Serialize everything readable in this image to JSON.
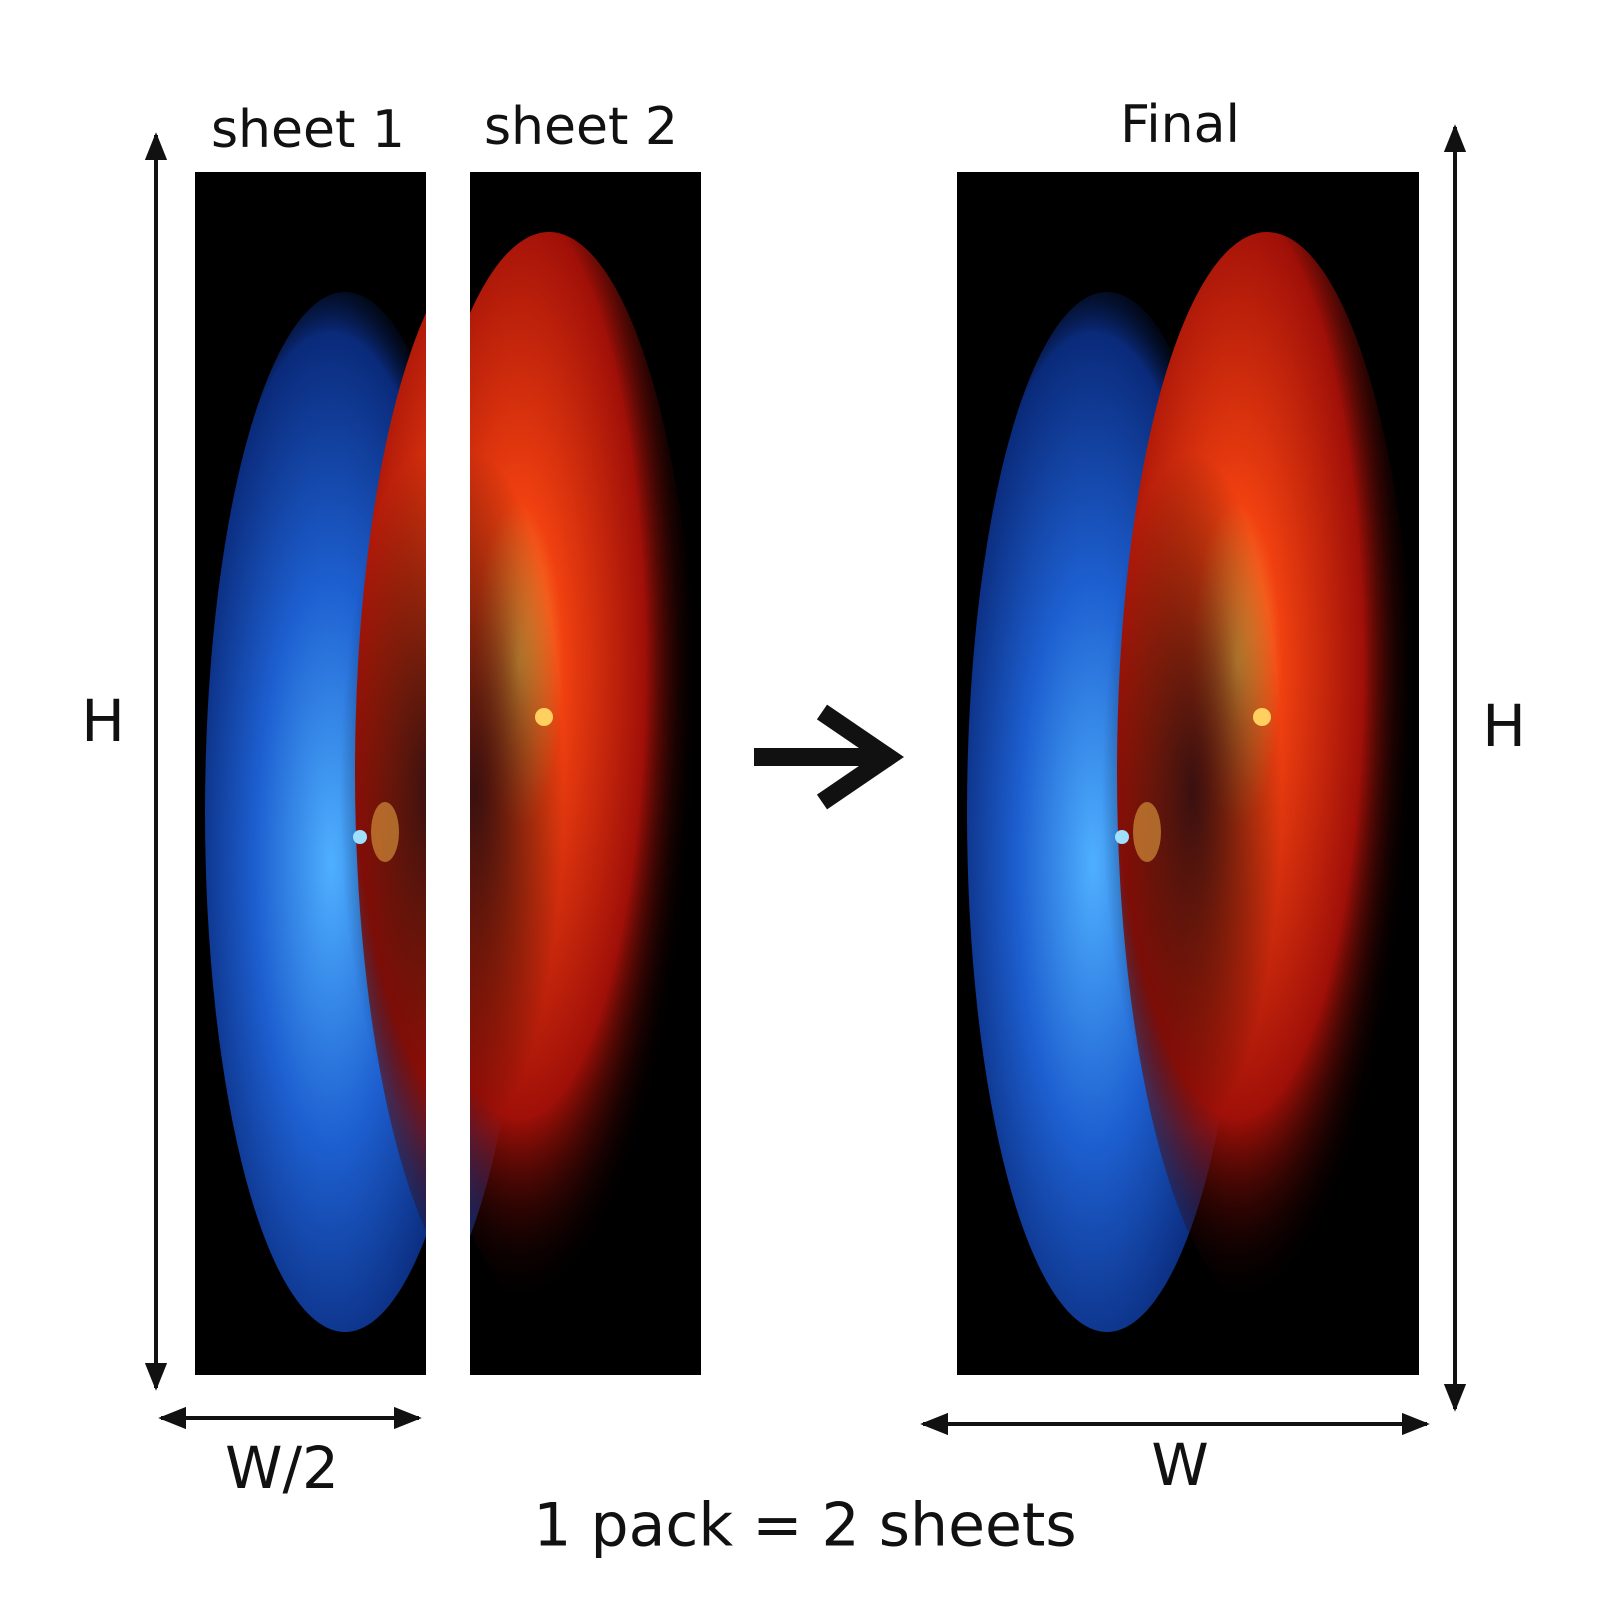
{
  "labels": {
    "sheet_1": "sheet 1",
    "sheet_2": "sheet 2",
    "final": "Final"
  },
  "dimensions": {
    "height_left": "H",
    "height_right": "H",
    "half_width": "W/2",
    "width": "W"
  },
  "footer": "1 pack = 2 sheets"
}
